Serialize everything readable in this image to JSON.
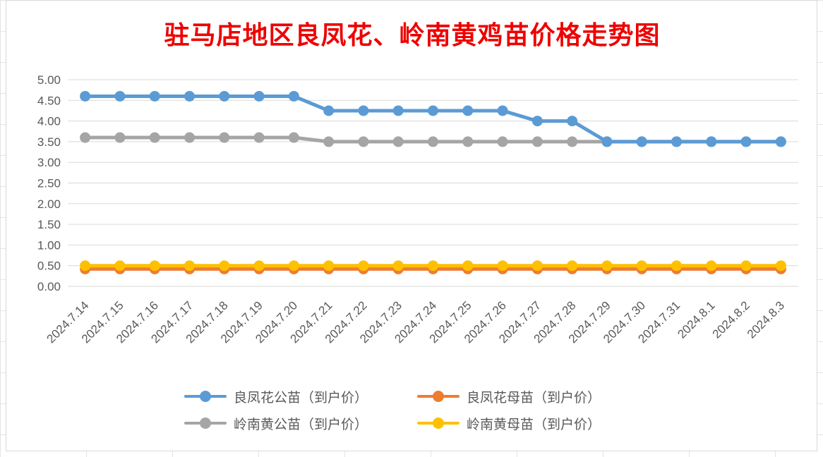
{
  "chart_data": {
    "type": "line",
    "title": "驻马店地区良凤花、岭南黄鸡苗价格走势图",
    "xlabel": "",
    "ylabel": "",
    "ylim": [
      0,
      5
    ],
    "ytick_step": 0.5,
    "y_tick_labels": [
      "0.00",
      "0.50",
      "1.00",
      "1.50",
      "2.00",
      "2.50",
      "3.00",
      "3.50",
      "4.00",
      "4.50",
      "5.00"
    ],
    "grid": "horizontal",
    "legend_position": "bottom",
    "categories": [
      "2024.7.14",
      "2024.7.15",
      "2024.7.16",
      "2024.7.17",
      "2024.7.18",
      "2024.7.19",
      "2024.7.20",
      "2024.7.21",
      "2024.7.22",
      "2024.7.23",
      "2024.7.24",
      "2024.7.25",
      "2024.7.26",
      "2024.7.27",
      "2024.7.28",
      "2024.7.29",
      "2024.7.30",
      "2024.7.31",
      "2024.8.1",
      "2024.8.2",
      "2024.8.3"
    ],
    "series": [
      {
        "name": "良凤花公苗（到户价）",
        "color": "#5b9bd5",
        "values": [
          4.6,
          4.6,
          4.6,
          4.6,
          4.6,
          4.6,
          4.6,
          4.25,
          4.25,
          4.25,
          4.25,
          4.25,
          4.25,
          4.0,
          4.0,
          3.5,
          3.5,
          3.5,
          3.5,
          3.5,
          3.5
        ]
      },
      {
        "name": "良凤花母苗（到户价）",
        "color": "#ed7d31",
        "values": [
          0.42,
          0.42,
          0.42,
          0.42,
          0.42,
          0.42,
          0.42,
          0.42,
          0.42,
          0.42,
          0.42,
          0.42,
          0.42,
          0.42,
          0.42,
          0.42,
          0.42,
          0.42,
          0.42,
          0.42,
          0.42
        ]
      },
      {
        "name": "岭南黄公苗（到户价）",
        "color": "#a5a5a5",
        "values": [
          3.6,
          3.6,
          3.6,
          3.6,
          3.6,
          3.6,
          3.6,
          3.5,
          3.5,
          3.5,
          3.5,
          3.5,
          3.5,
          3.5,
          3.5,
          3.5,
          3.5,
          3.5,
          3.5,
          3.5,
          3.5
        ]
      },
      {
        "name": "岭南黄母苗（到户价）",
        "color": "#ffc000",
        "values": [
          0.5,
          0.5,
          0.5,
          0.5,
          0.5,
          0.5,
          0.5,
          0.5,
          0.5,
          0.5,
          0.5,
          0.5,
          0.5,
          0.5,
          0.5,
          0.5,
          0.5,
          0.5,
          0.5,
          0.5,
          0.5
        ]
      }
    ],
    "draw_order": [
      2,
      0,
      1,
      3
    ],
    "colors": {
      "title": "#ee0000",
      "grid": "#d9d9d9",
      "tick_text": "#595959"
    }
  }
}
